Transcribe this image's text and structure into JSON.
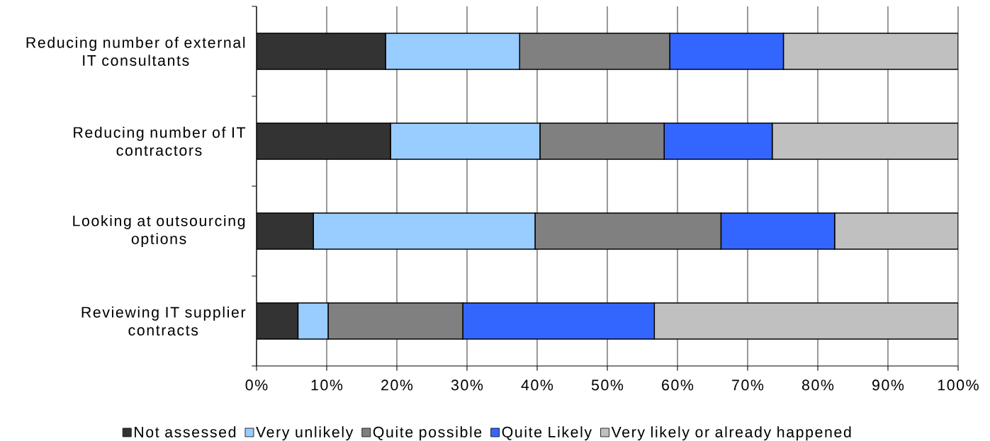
{
  "chart_data": {
    "type": "bar",
    "orientation": "horizontal",
    "stacked": true,
    "categories": [
      "Reducing number of external IT consultants",
      "Reducing number of IT contractors",
      "Looking at outsourcing options",
      "Reviewing IT supplier contracts"
    ],
    "series": [
      {
        "name": "Not assessed",
        "color": "#333333",
        "values": [
          18.4,
          19.1,
          8.1,
          5.9
        ]
      },
      {
        "name": "Very unlikely",
        "color": "#99ccff",
        "values": [
          19.1,
          21.3,
          31.6,
          4.3
        ]
      },
      {
        "name": "Quite possible",
        "color": "#808080",
        "values": [
          21.4,
          17.7,
          26.5,
          19.2
        ]
      },
      {
        "name": "Quite Likely",
        "color": "#3366ff",
        "values": [
          16.2,
          15.4,
          16.2,
          27.3
        ]
      },
      {
        "name": "Very likely or already happened",
        "color": "#c0c0c0",
        "values": [
          24.9,
          26.5,
          17.6,
          43.3
        ]
      }
    ],
    "xlim": [
      0,
      100
    ],
    "xticks": [
      {
        "value": 0,
        "label": "0%"
      },
      {
        "value": 10,
        "label": "10%"
      },
      {
        "value": 20,
        "label": "20%"
      },
      {
        "value": 30,
        "label": "30%"
      },
      {
        "value": 40,
        "label": "40%"
      },
      {
        "value": 50,
        "label": "50%"
      },
      {
        "value": 60,
        "label": "60%"
      },
      {
        "value": 70,
        "label": "70%"
      },
      {
        "value": 80,
        "label": "80%"
      },
      {
        "value": 90,
        "label": "90%"
      },
      {
        "value": 100,
        "label": "100%"
      }
    ],
    "grid": "x",
    "legend": "bottom"
  }
}
